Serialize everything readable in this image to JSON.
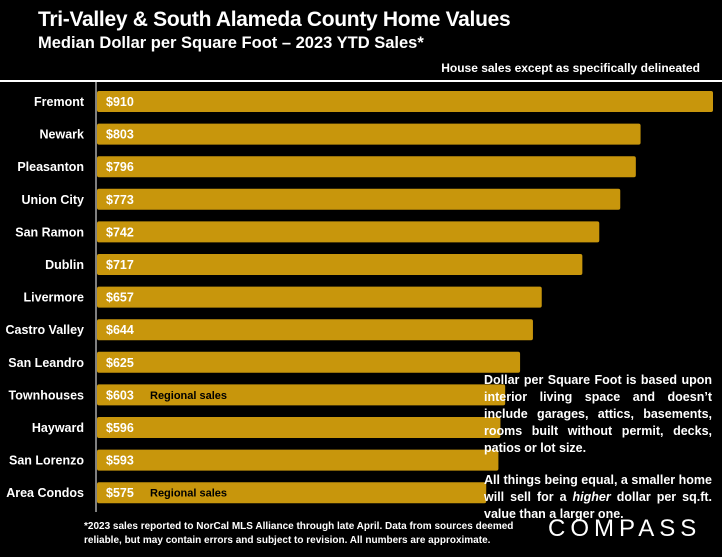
{
  "header": {
    "title": "Tri-Valley & South Alameda County Home Values",
    "subtitle": "Median Dollar per Square Foot – 2023 YTD Sales*",
    "note": "House sales except as specifically delineated"
  },
  "chart_data": {
    "type": "bar",
    "orientation": "horizontal",
    "categories": [
      "Fremont",
      "Newark",
      "Pleasanton",
      "Union City",
      "San Ramon",
      "Dublin",
      "Livermore",
      "Castro Valley",
      "San Leandro",
      "Townhouses",
      "Hayward",
      "San Lorenzo",
      "Area Condos"
    ],
    "values": [
      910,
      803,
      796,
      773,
      742,
      717,
      657,
      644,
      625,
      603,
      596,
      593,
      575
    ],
    "value_labels": [
      "$910",
      "$803",
      "$796",
      "$773",
      "$742",
      "$717",
      "$657",
      "$644",
      "$625",
      "$603",
      "$596",
      "$593",
      "$575"
    ],
    "annotations": [
      "",
      "",
      "",
      "",
      "",
      "",
      "",
      "",
      "",
      "Regional sales",
      "",
      "",
      "Regional sales"
    ],
    "bar_color": "#c8960c",
    "grid": false
  },
  "explanation": {
    "p1_a": "Dollar per Square Foot is based upon interior living space and doesn’t include garages, attics, basements, rooms built without permit, decks, patios or lot size.",
    "p2_a": "All things being equal, a smaller home will sell for a ",
    "p2_em": "higher",
    "p2_b": " dollar per sq.ft. value than a larger one."
  },
  "footnote": {
    "line1": "*2023 sales reported to NorCal MLS Alliance through late April. Data from sources deemed",
    "line2": "reliable, but may contain errors and subject to revision. All numbers are approximate."
  },
  "brand": {
    "logo": "COMPASS"
  }
}
